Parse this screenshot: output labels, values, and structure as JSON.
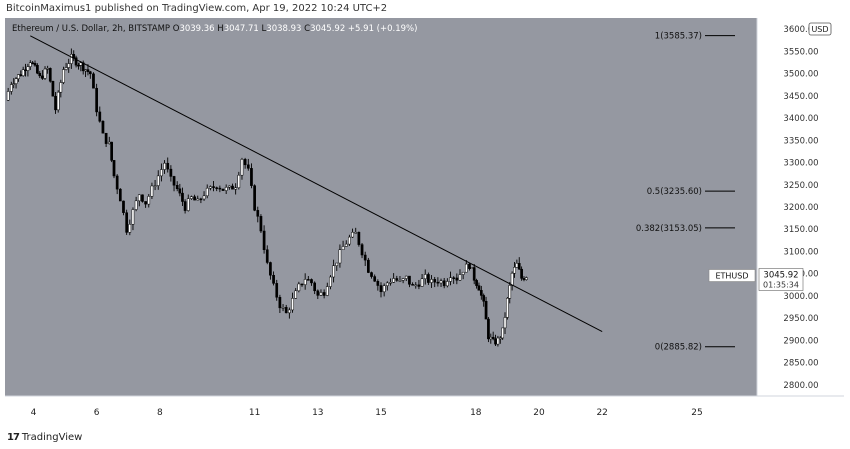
{
  "header": {
    "published": "BitcoinMaximus1 published on TradingView.com, Apr 19, 2022 10:24 UTC+2"
  },
  "footer": {
    "brand": "TradingView",
    "logo_icon": "tradingview-logo-icon"
  },
  "colors": {
    "plot_bg": "#9598a1",
    "candle_up": "#ffffff",
    "candle_down": "#000000",
    "trendline": "#000000",
    "price_tag_bg": "#ffffff"
  },
  "chart_data": {
    "type": "candlestick",
    "legend": {
      "symbol": "Ethereum / U.S. Dollar, 2h, BITSTAMP",
      "open_label": "O",
      "open": "3039.36",
      "high_label": "H",
      "high": "3047.71",
      "low_label": "L",
      "low": "3038.93",
      "close_label": "C",
      "close": "3045.92",
      "change": "+5.91 (+0.19%)"
    },
    "currency_label": "USD",
    "x_ticks": [
      {
        "day": 4,
        "label": "4"
      },
      {
        "day": 6,
        "label": "6"
      },
      {
        "day": 8,
        "label": "8"
      },
      {
        "day": 11,
        "label": "11"
      },
      {
        "day": 13,
        "label": "13"
      },
      {
        "day": 15,
        "label": "15"
      },
      {
        "day": 18,
        "label": "18"
      },
      {
        "day": 20,
        "label": "20"
      },
      {
        "day": 22,
        "label": "22"
      },
      {
        "day": 25,
        "label": "25"
      }
    ],
    "x_range": [
      3.1,
      26.9
    ],
    "ylim": [
      2775,
      3625
    ],
    "y_ticks": [
      2800,
      2850,
      2900,
      2950,
      3000,
      3050,
      3100,
      3150,
      3200,
      3250,
      3300,
      3350,
      3400,
      3450,
      3500,
      3550,
      3600
    ],
    "y_tick_labels": [
      "2800.00",
      "2850.00",
      "2900.00",
      "2950.00",
      "3000.00",
      "3050.00",
      "3100.00",
      "3150.00",
      "3200.00",
      "3250.00",
      "3300.00",
      "3350.00",
      "3400.00",
      "3450.00",
      "3500.00",
      "3550.00",
      "3600.00"
    ],
    "fib_levels": [
      {
        "label": "1(3585.37)",
        "price": 3585.37
      },
      {
        "label": "0.5(3235.60)",
        "price": 3235.6
      },
      {
        "label": "0.382(3153.05)",
        "price": 3153.05
      },
      {
        "label": "0(2885.82)",
        "price": 2885.82
      }
    ],
    "trendline": {
      "x1": 3.9,
      "y1": 3585,
      "x2": 22.0,
      "y2": 2920
    },
    "last_price": {
      "symbol": "ETHUSD",
      "price": "3045.92",
      "countdown": "01:35:34",
      "value": 3045.92
    },
    "price_path": [
      [
        3.1,
        3440
      ],
      [
        3.3,
        3480
      ],
      [
        3.6,
        3500
      ],
      [
        3.9,
        3530
      ],
      [
        4.2,
        3490
      ],
      [
        4.45,
        3510
      ],
      [
        4.7,
        3420
      ],
      [
        4.95,
        3510
      ],
      [
        5.2,
        3535
      ],
      [
        5.5,
        3520
      ],
      [
        5.8,
        3500
      ],
      [
        6.0,
        3420
      ],
      [
        6.2,
        3360
      ],
      [
        6.4,
        3340
      ],
      [
        6.55,
        3270
      ],
      [
        6.75,
        3220
      ],
      [
        6.95,
        3150
      ],
      [
        7.15,
        3190
      ],
      [
        7.35,
        3230
      ],
      [
        7.55,
        3210
      ],
      [
        7.75,
        3240
      ],
      [
        7.95,
        3270
      ],
      [
        8.15,
        3300
      ],
      [
        8.35,
        3260
      ],
      [
        8.55,
        3240
      ],
      [
        8.8,
        3200
      ],
      [
        9.0,
        3220
      ],
      [
        9.2,
        3210
      ],
      [
        9.4,
        3230
      ],
      [
        9.6,
        3240
      ],
      [
        9.8,
        3250
      ],
      [
        10.0,
        3240
      ],
      [
        10.2,
        3240
      ],
      [
        10.4,
        3250
      ],
      [
        10.6,
        3310
      ],
      [
        10.8,
        3280
      ],
      [
        11.0,
        3200
      ],
      [
        11.2,
        3150
      ],
      [
        11.4,
        3070
      ],
      [
        11.6,
        3020
      ],
      [
        11.8,
        2980
      ],
      [
        12.0,
        2960
      ],
      [
        12.2,
        2990
      ],
      [
        12.4,
        3020
      ],
      [
        12.6,
        3040
      ],
      [
        12.8,
        3030
      ],
      [
        13.0,
        3000
      ],
      [
        13.2,
        3010
      ],
      [
        13.4,
        3050
      ],
      [
        13.6,
        3080
      ],
      [
        13.8,
        3110
      ],
      [
        14.0,
        3130
      ],
      [
        14.2,
        3140
      ],
      [
        14.4,
        3100
      ],
      [
        14.6,
        3060
      ],
      [
        14.8,
        3040
      ],
      [
        15.0,
        3010
      ],
      [
        15.2,
        3030
      ],
      [
        15.4,
        3040
      ],
      [
        15.6,
        3030
      ],
      [
        15.8,
        3040
      ],
      [
        16.0,
        3020
      ],
      [
        16.2,
        3030
      ],
      [
        16.4,
        3040
      ],
      [
        16.6,
        3030
      ],
      [
        16.8,
        3035
      ],
      [
        17.0,
        3030
      ],
      [
        17.2,
        3050
      ],
      [
        17.4,
        3040
      ],
      [
        17.6,
        3060
      ],
      [
        17.8,
        3070
      ],
      [
        17.95,
        3040
      ],
      [
        18.1,
        3020
      ],
      [
        18.25,
        2980
      ],
      [
        18.4,
        2910
      ],
      [
        18.55,
        2895
      ],
      [
        18.7,
        2900
      ],
      [
        18.85,
        2920
      ],
      [
        19.0,
        2990
      ],
      [
        19.15,
        3050
      ],
      [
        19.3,
        3070
      ],
      [
        19.45,
        3040
      ],
      [
        19.6,
        3045.92
      ]
    ]
  }
}
